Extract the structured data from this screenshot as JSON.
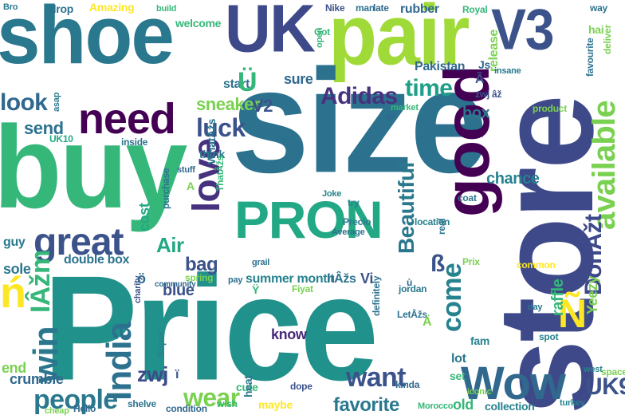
{
  "words": [
    {
      "text": "shoe",
      "color": "#2a788e"
    },
    {
      "text": "UK",
      "color": "#3e4989"
    },
    {
      "text": "pair",
      "color": "#a0da39"
    },
    {
      "text": "V3",
      "color": "#3b528b"
    },
    {
      "text": "size",
      "color": "#2c728e"
    },
    {
      "text": "buy",
      "color": "#35b779"
    },
    {
      "text": "store",
      "color": "#3e4989"
    },
    {
      "text": "Price",
      "color": "#21918c"
    },
    {
      "text": "good",
      "color": "#440154"
    },
    {
      "text": "PRON",
      "color": "#22a884"
    },
    {
      "text": "need",
      "color": "#440154"
    },
    {
      "text": "great",
      "color": "#3b528b"
    },
    {
      "text": "love",
      "color": "#46327e"
    },
    {
      "text": "available",
      "color": "#7ad151"
    },
    {
      "text": "Wow",
      "color": "#31688e"
    },
    {
      "text": "people",
      "color": "#2a788e"
    },
    {
      "text": "India",
      "color": "#2c728e"
    },
    {
      "text": "win",
      "color": "#2a788e"
    },
    {
      "text": "want",
      "color": "#3b528b"
    },
    {
      "text": "wear",
      "color": "#7ad151"
    },
    {
      "text": "favorite",
      "color": "#2a788e"
    },
    {
      "text": "Adidas",
      "color": "#46327e"
    },
    {
      "text": "look",
      "color": "#31688e"
    },
    {
      "text": "time",
      "color": "#1f9e89"
    },
    {
      "text": "sneaker",
      "color": "#7ad151"
    },
    {
      "text": "luck",
      "color": "#3b528b"
    },
    {
      "text": "come",
      "color": "#26828e"
    },
    {
      "text": "Beautiful",
      "color": "#2a788e"
    },
    {
      "text": "DonÂžt",
      "color": "#3e4989"
    },
    {
      "text": "Ñ",
      "color": "#fde725"
    },
    {
      "text": "UK9",
      "color": "#3b528b"
    },
    {
      "text": "Yeezy",
      "color": "#7ad151"
    },
    {
      "text": "Air",
      "color": "#22a884"
    },
    {
      "text": "bag",
      "color": "#3b528b"
    },
    {
      "text": "zwj",
      "color": "#3e4989"
    },
    {
      "text": "ß",
      "color": "#3b528b"
    },
    {
      "text": "ń",
      "color": "#fde725"
    },
    {
      "text": "chance",
      "color": "#26828e"
    },
    {
      "text": "raffle",
      "color": "#35b779"
    },
    {
      "text": "box",
      "color": "#2a788e"
    },
    {
      "text": "send",
      "color": "#2c728e"
    },
    {
      "text": "blue",
      "color": "#3b528b"
    },
    {
      "text": "cost",
      "color": "#22a884"
    },
    {
      "text": "sole",
      "color": "#2a788e"
    },
    {
      "text": "crumble",
      "color": "#31688e"
    },
    {
      "text": "double box",
      "color": "#2c728e"
    },
    {
      "text": "summer month",
      "color": "#26828e"
    },
    {
      "text": "know",
      "color": "#482878"
    },
    {
      "text": "V2",
      "color": "#3b528b"
    },
    {
      "text": "sure",
      "color": "#31688e"
    },
    {
      "text": "start",
      "color": "#2c728e"
    },
    {
      "text": "Ü",
      "color": "#35b779"
    },
    {
      "text": "IÂžm",
      "color": "#35b779"
    },
    {
      "text": "ItÂžs",
      "color": "#2c728e"
    },
    {
      "text": "old",
      "color": "#35b779"
    },
    {
      "text": "end",
      "color": "#7ad151"
    },
    {
      "text": "guy",
      "color": "#2a788e"
    },
    {
      "text": "Nike",
      "color": "#3b528b"
    },
    {
      "text": "rubber",
      "color": "#31688e"
    },
    {
      "text": "welcome",
      "color": "#35b779"
    },
    {
      "text": "drop",
      "color": "#2c728e"
    },
    {
      "text": "Amazing",
      "color": "#fde725"
    },
    {
      "text": "release",
      "color": "#7ad151"
    },
    {
      "text": "Pakistan",
      "color": "#31688e"
    },
    {
      "text": "Royal",
      "color": "#35b779"
    },
    {
      "text": "deliver",
      "color": "#7ad151"
    },
    {
      "text": "favourite",
      "color": "#2c728e"
    },
    {
      "text": "product",
      "color": "#7ad151"
    },
    {
      "text": "think",
      "color": "#2a788e"
    },
    {
      "text": "inside",
      "color": "#2c728e"
    },
    {
      "text": "try",
      "color": "#26828e"
    },
    {
      "text": "Precio",
      "color": "#2a788e"
    },
    {
      "text": "location",
      "color": "#26828e"
    },
    {
      "text": "kinda",
      "color": "#31688e"
    },
    {
      "text": "wish",
      "color": "#35b779"
    },
    {
      "text": "maybe",
      "color": "#fde725"
    },
    {
      "text": "dope",
      "color": "#3b528b"
    },
    {
      "text": "cute",
      "color": "#35b779"
    },
    {
      "text": "heat",
      "color": "#2a788e"
    },
    {
      "text": "condition",
      "color": "#31688e"
    },
    {
      "text": "collection",
      "color": "#26828e"
    },
    {
      "text": "space",
      "color": "#7ad151"
    },
    {
      "text": "spot",
      "color": "#26828e"
    },
    {
      "text": "Hello",
      "color": "#31688e"
    },
    {
      "text": "Super",
      "color": "#26828e"
    },
    {
      "text": "charity",
      "color": "#3b528b"
    },
    {
      "text": "purchase",
      "color": "#2c728e"
    },
    {
      "text": "ThatÂžs",
      "color": "#35b779"
    },
    {
      "text": "WhatÂžs",
      "color": "#2c728e"
    },
    {
      "text": "spring",
      "color": "#7ad151"
    },
    {
      "text": "definitely",
      "color": "#2c728e"
    },
    {
      "text": "market",
      "color": "#35b779"
    },
    {
      "text": "asap",
      "color": "#2a788e"
    },
    {
      "text": "stuff",
      "color": "#31688e"
    },
    {
      "text": "way",
      "color": "#2c728e"
    },
    {
      "text": "hai",
      "color": "#7ad151"
    },
    {
      "text": "build",
      "color": "#35b779"
    },
    {
      "text": "open",
      "color": "#35b779"
    },
    {
      "text": "Got",
      "color": "#35b779"
    },
    {
      "text": "man",
      "color": "#2c728e"
    },
    {
      "text": "late",
      "color": "#31688e"
    },
    {
      "text": "Joke",
      "color": "#26828e"
    },
    {
      "text": "Average",
      "color": "#2c728e"
    },
    {
      "text": "coat",
      "color": "#2a788e"
    },
    {
      "text": "Prix",
      "color": "#7ad151"
    },
    {
      "text": "common",
      "color": "#fde725"
    },
    {
      "text": "Fiyat",
      "color": "#7ad151"
    },
    {
      "text": "pay",
      "color": "#2c728e"
    },
    {
      "text": "Morocco",
      "color": "#35b779"
    },
    {
      "text": "turkey",
      "color": "#26828e"
    },
    {
      "text": "west",
      "color": "#26828e"
    },
    {
      "text": "day",
      "color": "#2a788e"
    },
    {
      "text": "shelve",
      "color": "#2c728e"
    },
    {
      "text": "community",
      "color": "#31688e"
    },
    {
      "text": "iconic",
      "color": "#7ad151"
    },
    {
      "text": "jordan",
      "color": "#2a788e"
    },
    {
      "text": "fam",
      "color": "#26828e"
    },
    {
      "text": "lot",
      "color": "#2a788e"
    },
    {
      "text": "set",
      "color": "#35b779"
    },
    {
      "text": "real",
      "color": "#2a788e"
    },
    {
      "text": "zwj âž",
      "color": "#3b528b"
    },
    {
      "text": "UK10",
      "color": "#22a884"
    },
    {
      "text": "LetÂžs",
      "color": "#2c728e"
    },
    {
      "text": "Bro",
      "color": "#2a788e"
    },
    {
      "text": "cheap",
      "color": "#7ad151"
    },
    {
      "text": "grail",
      "color": "#2c728e"
    },
    {
      "text": "insane",
      "color": "#2a788e"
    },
    {
      "text": "Ã",
      "color": "#3b528b"
    },
    {
      "text": "Vi",
      "color": "#3b528b"
    },
    {
      "text": "ö",
      "color": "#31688e"
    },
    {
      "text": "ï",
      "color": "#3b528b"
    },
    {
      "text": "Js",
      "color": "#31688e"
    },
    {
      "text": "Ä",
      "color": "#7ad151"
    },
    {
      "text": "A",
      "color": "#7ad151"
    },
    {
      "text": "w",
      "color": "#31688e"
    },
    {
      "text": "Ÿ",
      "color": "#35b779"
    },
    {
      "text": "ù",
      "color": "#31688e"
    }
  ]
}
